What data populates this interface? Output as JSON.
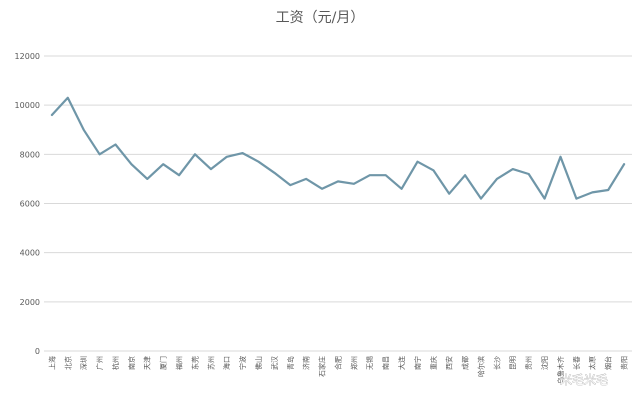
{
  "chart_data": {
    "type": "line",
    "title": "工资（元/月）",
    "xlabel": "",
    "ylabel": "",
    "ylim": [
      0,
      12000
    ],
    "yticks": [
      0,
      2000,
      4000,
      6000,
      8000,
      10000,
      12000
    ],
    "grid": true,
    "legend": "none",
    "categories": [
      "上海",
      "北京",
      "深圳",
      "广州",
      "杭州",
      "南京",
      "天津",
      "厦门",
      "福州",
      "东莞",
      "苏州",
      "海口",
      "宁波",
      "佛山",
      "武汉",
      "青岛",
      "济南",
      "石家庄",
      "合肥",
      "郑州",
      "无锡",
      "南昌",
      "大连",
      "南宁",
      "重庆",
      "西安",
      "成都",
      "哈尔滨",
      "长沙",
      "昆明",
      "贵州",
      "沈阳",
      "乌鲁木齐",
      "长春",
      "太原",
      "烟台",
      "贵阳"
    ],
    "series": [
      {
        "color": "#6f96a8",
        "values": [
          9600,
          10300,
          9000,
          8000,
          8400,
          7600,
          7000,
          7600,
          7150,
          8000,
          7400,
          7900,
          8050,
          7700,
          7250,
          6750,
          7000,
          6600,
          6900,
          6800,
          7150,
          7150,
          6600,
          7700,
          7350,
          6400,
          7150,
          6200,
          7000,
          7400,
          7200,
          6200,
          7900,
          6200,
          6450,
          6550,
          7600
        ]
      }
    ]
  },
  "watermark": "米毛米毛"
}
